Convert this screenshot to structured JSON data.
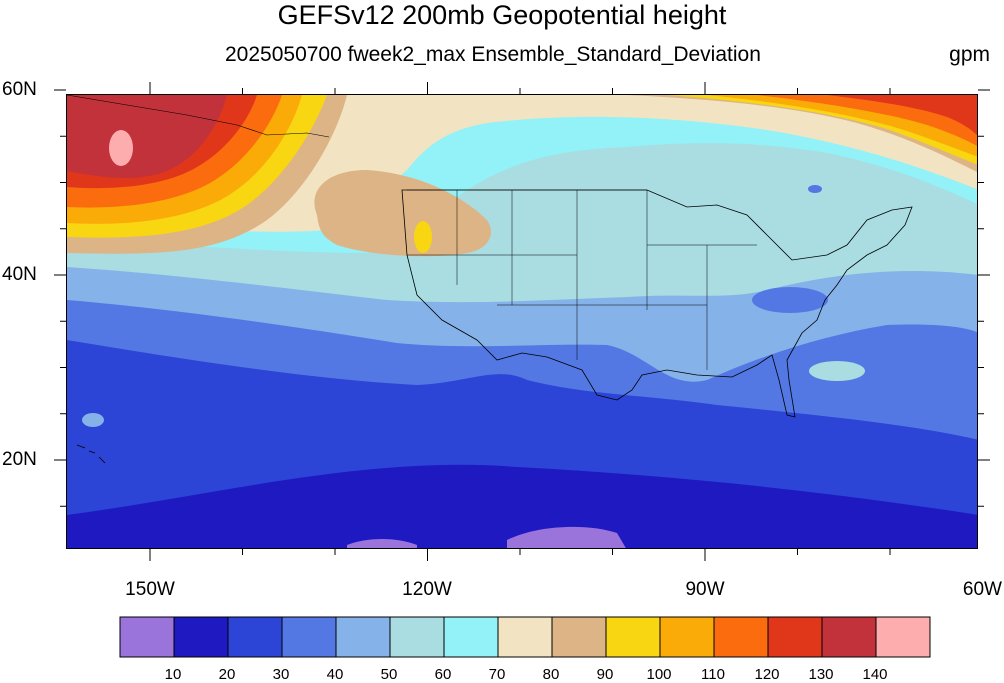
{
  "title": "GEFSv12 200mb Geopotential height",
  "subtitle": "2025050700 fweek2_max Ensemble_Standard_Deviation",
  "units": "gpm",
  "latitude_labels": [
    "60N",
    "40N",
    "20N"
  ],
  "longitude_labels": [
    "150W",
    "120W",
    "90W",
    "60W"
  ],
  "colorbar": {
    "levels": [
      "10",
      "20",
      "30",
      "40",
      "50",
      "60",
      "70",
      "80",
      "90",
      "100",
      "110",
      "120",
      "130",
      "140"
    ],
    "colors": [
      "#9b74db",
      "#1f19c2",
      "#2c45d6",
      "#5378e4",
      "#86b2ea",
      "#a9dde2",
      "#92f2f7",
      "#f2e4c2",
      "#dcb486",
      "#f8d612",
      "#fbab08",
      "#fb6c0f",
      "#e0361a",
      "#c1323b",
      "#feadae"
    ]
  }
}
